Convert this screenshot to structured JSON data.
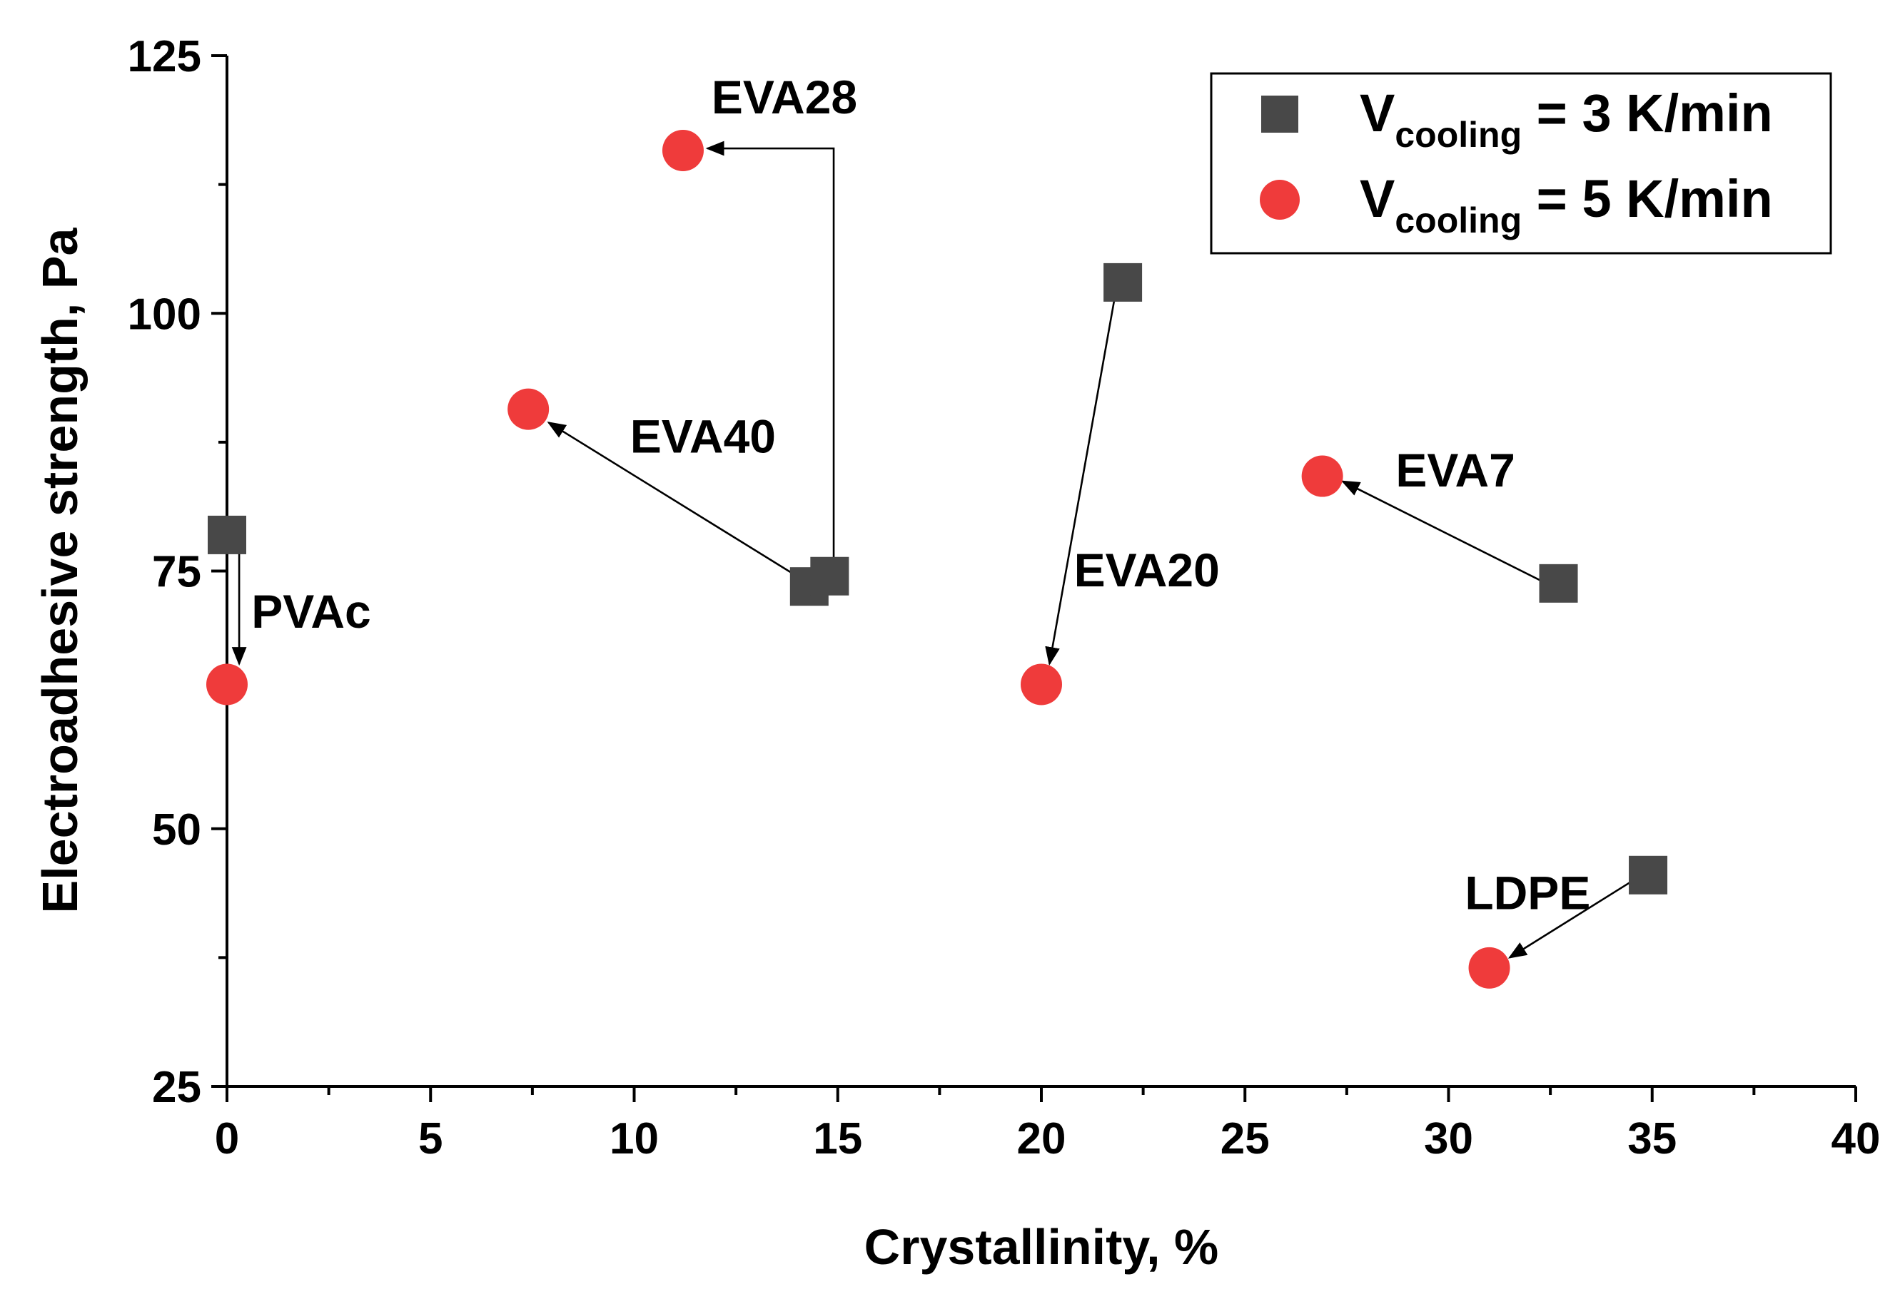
{
  "chart_data": {
    "type": "scatter",
    "title": "",
    "xlabel": "Crystallinity, %",
    "ylabel": "Electroadhesive strength, Pa",
    "xlim": [
      0,
      40
    ],
    "ylim": [
      25,
      125
    ],
    "xticks": [
      0,
      5,
      10,
      15,
      20,
      25,
      30,
      35,
      40
    ],
    "xtick_labels": [
      "0",
      "5",
      "10",
      "15",
      "20",
      "25",
      "30",
      "35",
      "40"
    ],
    "yticks": [
      25,
      50,
      75,
      100,
      125
    ],
    "ytick_labels": [
      "25",
      "50",
      "75",
      "100",
      "125"
    ],
    "grid": false,
    "legend_position": "top-right",
    "series": [
      {
        "name": "V_cooling = 3 K/min",
        "marker": "square",
        "color": "#484848",
        "points": [
          {
            "label": "PVAc",
            "x": 0.0,
            "y": 78.5
          },
          {
            "label": "EVA40",
            "x": 14.3,
            "y": 73.5
          },
          {
            "label": "EVA28",
            "x": 14.8,
            "y": 74.5
          },
          {
            "label": "EVA20",
            "x": 22.0,
            "y": 103.0
          },
          {
            "label": "EVA7",
            "x": 32.7,
            "y": 73.8
          },
          {
            "label": "LDPE",
            "x": 34.9,
            "y": 45.5
          }
        ]
      },
      {
        "name": "V_cooling = 5 K/min",
        "marker": "circle",
        "color": "#ef3b3b",
        "points": [
          {
            "label": "PVAc",
            "x": 0.0,
            "y": 64.0
          },
          {
            "label": "EVA40",
            "x": 7.4,
            "y": 90.7
          },
          {
            "label": "EVA28",
            "x": 11.2,
            "y": 115.8
          },
          {
            "label": "EVA20",
            "x": 20.0,
            "y": 64.0
          },
          {
            "label": "EVA7",
            "x": 26.9,
            "y": 84.2
          },
          {
            "label": "LDPE",
            "x": 31.0,
            "y": 36.5
          }
        ]
      }
    ],
    "legend": [
      {
        "symbol": "V",
        "subscript": "cooling",
        "rest": "= 3 K/min",
        "marker": "square",
        "color": "#484848"
      },
      {
        "symbol": "V",
        "subscript": "cooling",
        "rest": "= 5 K/min",
        "marker": "circle",
        "color": "#ef3b3b"
      }
    ],
    "annotations": [
      {
        "text": "PVAc",
        "anchor_x": 0.6,
        "anchor_y": 69.5
      },
      {
        "text": "EVA40",
        "anchor_x": 9.9,
        "anchor_y": 86.5
      },
      {
        "text": "EVA28",
        "anchor_x": 11.9,
        "anchor_y": 119.4
      },
      {
        "text": "EVA20",
        "anchor_x": 20.8,
        "anchor_y": 73.5
      },
      {
        "text": "EVA7",
        "anchor_x": 28.7,
        "anchor_y": 83.2
      },
      {
        "text": "LDPE",
        "anchor_x": 30.4,
        "anchor_y": 42.2
      }
    ],
    "arrows": [
      {
        "from": [
          0.3,
          78.5
        ],
        "to": [
          0.3,
          66.0
        ]
      },
      {
        "from": [
          14.0,
          74.5
        ],
        "to": [
          7.9,
          89.4
        ]
      },
      {
        "from": [
          14.9,
          76.0
        ],
        "via": [
          14.9,
          116.0
        ],
        "to": [
          11.8,
          116.0
        ]
      },
      {
        "from": [
          21.8,
          101.5
        ],
        "to": [
          20.2,
          66.0
        ]
      },
      {
        "from": [
          32.3,
          74.0
        ],
        "to": [
          27.4,
          83.7
        ]
      },
      {
        "from": [
          34.5,
          44.9
        ],
        "to": [
          31.5,
          37.5
        ]
      }
    ]
  }
}
